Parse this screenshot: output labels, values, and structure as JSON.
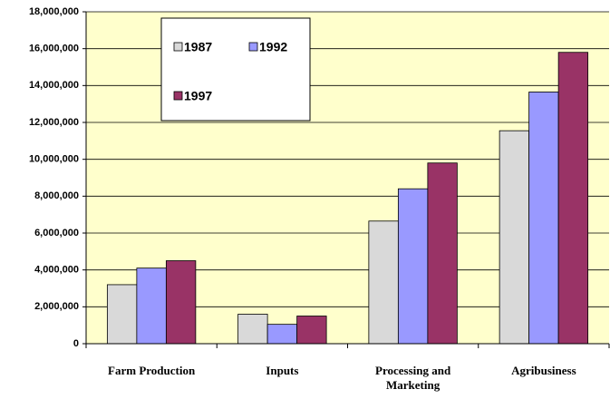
{
  "chart_data": {
    "type": "bar",
    "categories": [
      "Farm Production",
      "Inputs",
      "Processing and Marketing",
      "Agribusiness"
    ],
    "series": [
      {
        "name": "1987",
        "color": "#d9d9d9",
        "values": [
          3200000,
          1600000,
          6650000,
          11550000
        ]
      },
      {
        "name": "1992",
        "color": "#9999ff",
        "values": [
          4100000,
          1050000,
          8400000,
          13650000
        ]
      },
      {
        "name": "1997",
        "color": "#993366",
        "values": [
          4500000,
          1500000,
          9800000,
          15800000
        ]
      }
    ],
    "ylim": [
      0,
      18000000
    ],
    "yticks": [
      0,
      {
        "value": 2000000,
        "label": "2,000,000"
      },
      {
        "value": 4000000,
        "label": "4,000,000"
      },
      {
        "value": 6000000,
        "label": "6,000,000"
      },
      {
        "value": 8000000,
        "label": "8,000,000"
      },
      {
        "value": 10000000,
        "label": "10,000,000"
      },
      {
        "value": 12000000,
        "label": "12,000,000"
      },
      {
        "value": 14000000,
        "label": "14,000,000"
      },
      {
        "value": 16000000,
        "label": "16,000,000"
      },
      {
        "value": 18000000,
        "label": "18,000,000"
      }
    ],
    "grid": true
  }
}
